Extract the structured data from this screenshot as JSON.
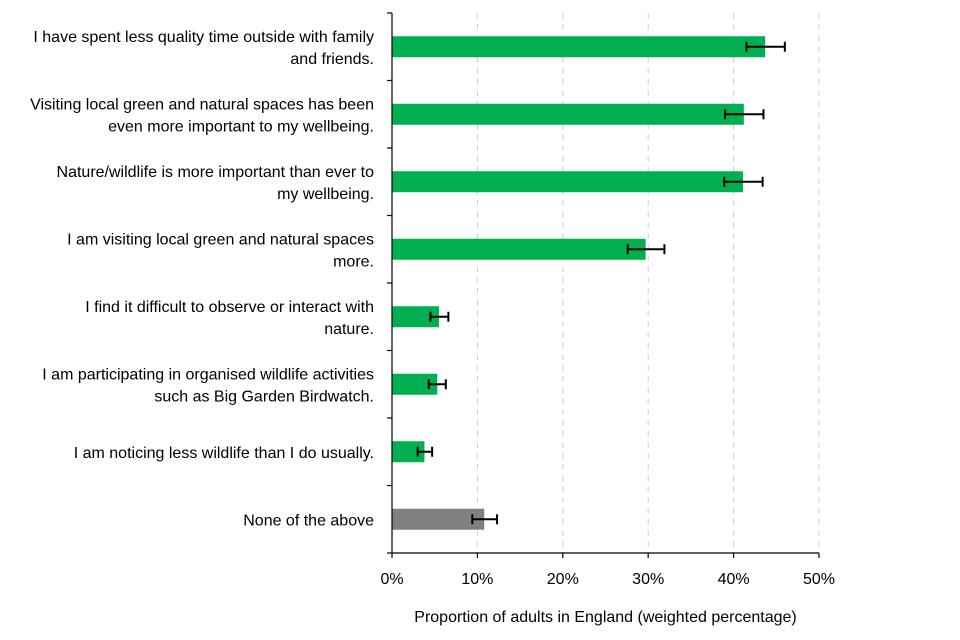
{
  "chart_data": {
    "type": "bar",
    "orientation": "horizontal",
    "title": "",
    "xlabel": "Proportion of adults in England (weighted percentage)",
    "ylabel": "",
    "xlim": [
      0,
      50
    ],
    "xticks": [
      0,
      10,
      20,
      30,
      40,
      50
    ],
    "xtick_labels": [
      "0%",
      "10%",
      "20%",
      "30%",
      "40%",
      "50%"
    ],
    "grid": "vertical dashed",
    "legend": "none",
    "categories": [
      [
        "I have spent less quality time outside with family",
        "and friends."
      ],
      [
        "Visiting local green and natural spaces has been",
        "even more important to my wellbeing."
      ],
      [
        "Nature/wildlife is more important than ever to",
        "my wellbeing."
      ],
      [
        "I am visiting local green and natural spaces",
        "more."
      ],
      [
        "I find it difficult to observe or interact with",
        "nature."
      ],
      [
        "I am participating in organised wildlife activities",
        "such as Big Garden Birdwatch."
      ],
      [
        "I am noticing less wildlife than I do usually."
      ],
      [
        "None of the above"
      ]
    ],
    "values": [
      43.7,
      41.2,
      41.1,
      29.7,
      5.5,
      5.3,
      3.8,
      10.8
    ],
    "error_low": [
      41.5,
      39.0,
      38.9,
      27.6,
      4.5,
      4.3,
      3.0,
      9.4
    ],
    "error_high": [
      46.0,
      43.5,
      43.4,
      31.9,
      6.6,
      6.3,
      4.7,
      12.3
    ],
    "colors": [
      "#00b050",
      "#00b050",
      "#00b050",
      "#00b050",
      "#00b050",
      "#00b050",
      "#00b050",
      "#808080"
    ]
  }
}
